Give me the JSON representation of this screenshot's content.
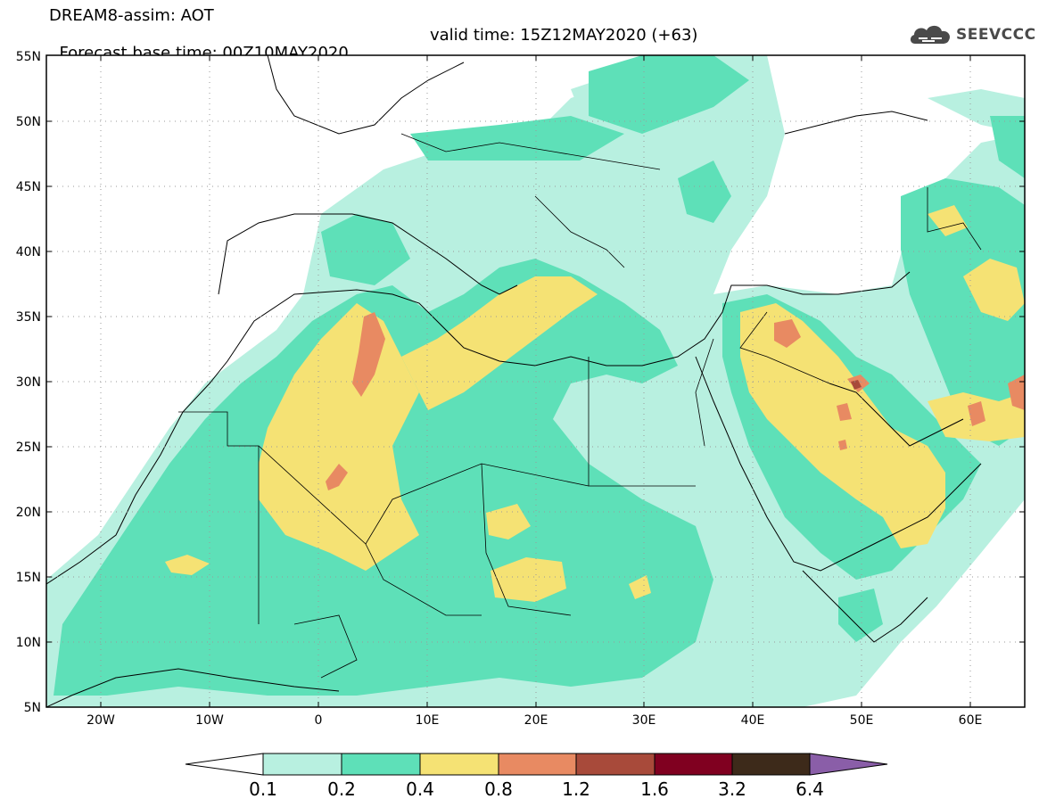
{
  "header": {
    "title_line1": "DREAM8-assim: AOT",
    "title_line2_left": "Forecast base time: 00Z10MAY2020",
    "title_line2_right": "valid time: 15Z12MAY2020 (+63)",
    "logo_text": "SEEVCCC"
  },
  "map": {
    "lon_range": [
      -25,
      65
    ],
    "lat_range": [
      5,
      55
    ],
    "lat_ticks": [
      "5N",
      "10N",
      "15N",
      "20N",
      "25N",
      "30N",
      "35N",
      "40N",
      "45N",
      "50N",
      "55N"
    ],
    "lon_ticks": [
      "20W",
      "10W",
      "0",
      "10E",
      "20E",
      "30E",
      "40E",
      "50E",
      "60E"
    ],
    "grid": "dotted"
  },
  "colorbar": {
    "labels": [
      "0.1",
      "0.2",
      "0.4",
      "0.8",
      "1.2",
      "1.6",
      "3.2",
      "6.4"
    ],
    "colors": [
      "#ffffff",
      "#b8f0e0",
      "#5ee0b8",
      "#f5e274",
      "#e88a62",
      "#a84a3a",
      "#800020",
      "#3d2a1a",
      "#8a5ea8"
    ]
  }
}
